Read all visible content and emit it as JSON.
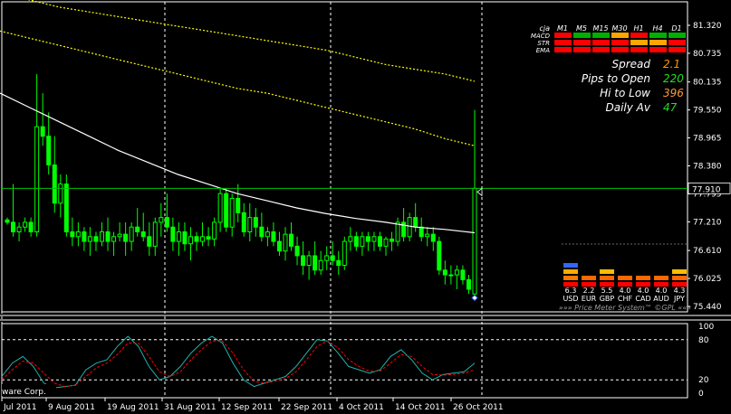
{
  "colors": {
    "background": "#000000",
    "candle": "#00ff00",
    "ma_fast": "#ffffff",
    "ma_slow": "#ffff00",
    "grid": "#ffffff",
    "stoch_main": "#20b2aa",
    "stoch_signal": "#ff0000",
    "price_line": "#00c000",
    "signal_red": "#ff0000",
    "signal_green": "#00b000",
    "signal_orange": "#ffa500",
    "spread_val": "#ff9900",
    "pips_val": "#22dd22",
    "hilo_val": "#ff9933",
    "daily_val": "#22dd22"
  },
  "chart_data": {
    "type": "candlestick",
    "y_range": [
      75.44,
      81.32
    ],
    "y_ticks": [
      "81.320",
      "80.735",
      "80.135",
      "79.550",
      "78.965",
      "78.380",
      "77.795",
      "77.210",
      "76.610",
      "76.025",
      "75.440"
    ],
    "current_price": "77.910",
    "current_price_value": 77.91,
    "x_labels": [
      "Jul 2011",
      "9 Aug 2011",
      "19 Aug 2011",
      "31 Aug 2011",
      "12 Sep 2011",
      "22 Sep 2011",
      "4 Oct 2011",
      "14 Oct 2011",
      "26 Oct 2011"
    ],
    "candles": [
      [
        77.25,
        77.3,
        77.15,
        77.2
      ],
      [
        77.2,
        78.0,
        76.9,
        77.0
      ],
      [
        77.0,
        77.2,
        76.8,
        77.1
      ],
      [
        77.1,
        77.3,
        77.0,
        77.2
      ],
      [
        77.2,
        77.3,
        76.9,
        77.0
      ],
      [
        77.0,
        80.3,
        76.9,
        79.2
      ],
      [
        79.2,
        79.9,
        78.8,
        79.0
      ],
      [
        79.0,
        79.5,
        78.2,
        78.4
      ],
      [
        78.4,
        79.0,
        77.4,
        77.6
      ],
      [
        77.6,
        78.2,
        77.3,
        78.0
      ],
      [
        78.0,
        78.2,
        76.9,
        77.0
      ],
      [
        77.0,
        77.3,
        76.7,
        76.9
      ],
      [
        76.9,
        77.2,
        76.7,
        77.0
      ],
      [
        77.0,
        77.1,
        76.6,
        76.8
      ],
      [
        76.8,
        77.1,
        76.5,
        76.9
      ],
      [
        76.9,
        77.0,
        76.6,
        76.8
      ],
      [
        76.8,
        77.2,
        76.7,
        77.0
      ],
      [
        77.0,
        77.3,
        76.6,
        76.8
      ],
      [
        76.8,
        77.0,
        76.5,
        76.9
      ],
      [
        76.9,
        77.2,
        76.8,
        76.95
      ],
      [
        76.95,
        77.2,
        76.5,
        76.8
      ],
      [
        76.8,
        77.2,
        76.6,
        77.1
      ],
      [
        77.1,
        77.5,
        76.9,
        77.0
      ],
      [
        77.0,
        77.4,
        76.8,
        76.9
      ],
      [
        76.9,
        77.2,
        76.5,
        76.7
      ],
      [
        76.7,
        77.3,
        76.5,
        77.2
      ],
      [
        77.2,
        77.6,
        76.9,
        77.3
      ],
      [
        77.3,
        77.8,
        77.0,
        77.1
      ],
      [
        77.1,
        77.3,
        76.6,
        76.8
      ],
      [
        76.8,
        77.2,
        76.5,
        77.0
      ],
      [
        77.0,
        77.2,
        76.6,
        76.75
      ],
      [
        76.75,
        77.1,
        76.4,
        76.9
      ],
      [
        76.9,
        77.0,
        76.6,
        76.8
      ],
      [
        76.8,
        77.2,
        76.7,
        76.9
      ],
      [
        76.9,
        77.1,
        76.7,
        76.85
      ],
      [
        76.85,
        77.3,
        76.7,
        77.2
      ],
      [
        77.2,
        77.9,
        77.0,
        77.8
      ],
      [
        77.8,
        77.9,
        77.0,
        77.1
      ],
      [
        77.1,
        77.8,
        76.9,
        77.7
      ],
      [
        77.7,
        78.0,
        77.2,
        77.4
      ],
      [
        77.4,
        77.6,
        76.9,
        77.0
      ],
      [
        77.0,
        77.6,
        76.8,
        77.3
      ],
      [
        77.3,
        77.5,
        76.9,
        77.1
      ],
      [
        77.1,
        77.4,
        76.8,
        76.9
      ],
      [
        76.9,
        77.1,
        76.7,
        77.0
      ],
      [
        77.0,
        77.2,
        76.7,
        76.8
      ],
      [
        76.8,
        77.0,
        76.5,
        76.6
      ],
      [
        76.6,
        77.1,
        76.4,
        76.95
      ],
      [
        76.95,
        77.2,
        76.6,
        76.7
      ],
      [
        76.7,
        76.9,
        76.3,
        76.5
      ],
      [
        76.5,
        76.8,
        76.1,
        76.3
      ],
      [
        76.3,
        76.6,
        76.0,
        76.5
      ],
      [
        76.5,
        76.8,
        76.1,
        76.2
      ],
      [
        76.2,
        76.6,
        76.1,
        76.4
      ],
      [
        76.4,
        76.7,
        76.2,
        76.5
      ],
      [
        76.5,
        76.8,
        76.3,
        76.4
      ],
      [
        76.4,
        76.6,
        76.1,
        76.3
      ],
      [
        76.3,
        76.9,
        76.2,
        76.8
      ],
      [
        76.8,
        77.1,
        76.6,
        76.9
      ],
      [
        76.9,
        77.0,
        76.6,
        76.7
      ],
      [
        76.7,
        77.0,
        76.5,
        76.9
      ],
      [
        76.9,
        77.0,
        76.6,
        76.8
      ],
      [
        76.8,
        77.0,
        76.6,
        76.9
      ],
      [
        76.9,
        77.0,
        76.6,
        76.7
      ],
      [
        76.7,
        76.9,
        76.5,
        76.85
      ],
      [
        76.85,
        77.0,
        76.6,
        76.8
      ],
      [
        76.8,
        77.3,
        76.7,
        77.2
      ],
      [
        77.2,
        77.5,
        76.8,
        76.9
      ],
      [
        76.9,
        77.4,
        76.8,
        77.3
      ],
      [
        77.3,
        77.6,
        77.0,
        77.1
      ],
      [
        77.1,
        77.3,
        76.8,
        76.9
      ],
      [
        76.9,
        77.1,
        76.7,
        76.95
      ],
      [
        76.95,
        77.1,
        76.6,
        76.8
      ],
      [
        76.8,
        76.9,
        76.1,
        76.2
      ],
      [
        76.2,
        76.4,
        75.9,
        76.1
      ],
      [
        76.1,
        76.3,
        75.9,
        76.1
      ],
      [
        76.1,
        76.3,
        75.8,
        76.2
      ],
      [
        76.2,
        76.3,
        75.9,
        76.0
      ],
      [
        76.0,
        76.1,
        75.7,
        75.8
      ],
      [
        75.7,
        79.55,
        75.6,
        77.91
      ]
    ],
    "ma_fast": [
      79.9,
      79.6,
      79.3,
      79.0,
      78.7,
      78.45,
      78.2,
      78.0,
      77.8,
      77.65,
      77.5,
      77.38,
      77.28,
      77.2,
      77.1,
      77.05,
      76.98
    ],
    "ma_slow": [
      81.2,
      81.05,
      80.9,
      80.75,
      80.6,
      80.45,
      80.3,
      80.15,
      80.0,
      79.9,
      79.75,
      79.6,
      79.45,
      79.3,
      79.15,
      78.95,
      78.8
    ],
    "ma_slow2": [
      82.0,
      81.85,
      81.7,
      81.6,
      81.5,
      81.4,
      81.3,
      81.2,
      81.1,
      81.0,
      80.9,
      80.8,
      80.65,
      80.5,
      80.4,
      80.3,
      80.15
    ],
    "stoch": {
      "levels": [
        "100",
        "80",
        "20",
        "0"
      ],
      "main": [
        25,
        45,
        55,
        40,
        15,
        8,
        10,
        12,
        35,
        45,
        50,
        70,
        85,
        70,
        40,
        20,
        25,
        40,
        60,
        75,
        85,
        75,
        45,
        20,
        10,
        15,
        20,
        25,
        40,
        60,
        80,
        78,
        60,
        40,
        35,
        30,
        35,
        55,
        65,
        50,
        30,
        20,
        28,
        30,
        32,
        45
      ],
      "signal": [
        20,
        35,
        48,
        45,
        30,
        15,
        10,
        12,
        25,
        38,
        45,
        58,
        75,
        75,
        55,
        32,
        25,
        32,
        50,
        65,
        78,
        78,
        60,
        35,
        18,
        15,
        18,
        22,
        32,
        50,
        70,
        78,
        68,
        50,
        40,
        33,
        33,
        45,
        58,
        55,
        40,
        28,
        27,
        28,
        30,
        35
      ]
    },
    "overlay_text": "ware Corp."
  },
  "signal_table": {
    "brand": "cja",
    "timeframes": [
      "M1",
      "M5",
      "M15",
      "M30",
      "H1",
      "H4",
      "D1"
    ],
    "rows": [
      {
        "name": "MACD",
        "colors": [
          "red",
          "green",
          "green",
          "orange",
          "red",
          "green",
          "green"
        ]
      },
      {
        "name": "STR",
        "colors": [
          "red",
          "red",
          "red",
          "red",
          "orange",
          "orange",
          "red"
        ]
      },
      {
        "name": "EMA",
        "colors": [
          "red",
          "red",
          "red",
          "red",
          "red",
          "red",
          "red"
        ]
      }
    ]
  },
  "info": [
    {
      "label": "Spread",
      "value": "2.1",
      "color_key": "spread_val"
    },
    {
      "label": "Pips to Open",
      "value": "220",
      "color_key": "pips_val"
    },
    {
      "label": "Hi to Low",
      "value": "396",
      "color_key": "hilo_val"
    },
    {
      "label": "Daily Av",
      "value": "47",
      "color_key": "daily_val"
    }
  ],
  "price_meter": {
    "caption": "»»» Price Meter System™ ©GPL «««",
    "currencies": [
      {
        "code": "USD",
        "value": "6.3",
        "bars": [
          "#ff0000",
          "#ff7700",
          "#ffaa00",
          "#3366ff"
        ]
      },
      {
        "code": "EUR",
        "value": "2.2",
        "bars": [
          "#ff0000",
          "#ff6600"
        ]
      },
      {
        "code": "GBP",
        "value": "5.5",
        "bars": [
          "#ff0000",
          "#ff6600",
          "#ffbb00"
        ]
      },
      {
        "code": "CHF",
        "value": "4.0",
        "bars": [
          "#ff0000",
          "#ff6600"
        ]
      },
      {
        "code": "CAD",
        "value": "4.0",
        "bars": [
          "#ff0000",
          "#ff6600"
        ]
      },
      {
        "code": "AUD",
        "value": "4.0",
        "bars": [
          "#ff0000",
          "#ff6600"
        ]
      },
      {
        "code": "JPY",
        "value": "4.3",
        "bars": [
          "#ff0000",
          "#ff6600",
          "#ffbb00"
        ]
      }
    ]
  }
}
